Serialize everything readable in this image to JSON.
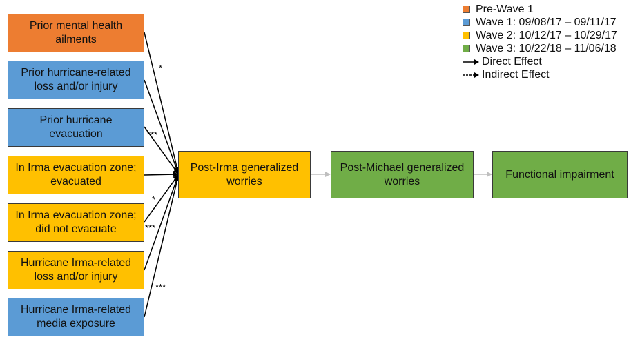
{
  "predictors": [
    {
      "label": "Prior mental health ailments",
      "wave": "pre"
    },
    {
      "label": "Prior hurricane-related loss and/or injury",
      "wave": "w1"
    },
    {
      "label": "Prior hurricane evacuation",
      "wave": "w1"
    },
    {
      "label": "In Irma evacuation zone; evacuated",
      "wave": "w2"
    },
    {
      "label": "In Irma evacuation zone; did not evacuate",
      "wave": "w2"
    },
    {
      "label": "Hurricane Irma-related loss and/or injury",
      "wave": "w2"
    },
    {
      "label": "Hurricane Irma-related media exposure",
      "wave": "w1"
    }
  ],
  "outcomes": [
    {
      "label": "Post-Irma generalized worries",
      "wave": "w2"
    },
    {
      "label": "Post-Michael generalized worries",
      "wave": "w3"
    },
    {
      "label": "Functional impairment",
      "wave": "w3"
    }
  ],
  "significance": [
    "*",
    "***",
    "*",
    "***",
    "***"
  ],
  "legend": {
    "waves": [
      {
        "label": "Pre-Wave 1",
        "color": "#ED7D31"
      },
      {
        "label": "Wave 1: 09/08/17 – 09/11/17",
        "color": "#5B9BD5"
      },
      {
        "label": "Wave 2: 10/12/17 – 10/29/17",
        "color": "#FFC000"
      },
      {
        "label": "Wave 3: 10/22/18 – 11/06/18",
        "color": "#70AD47"
      }
    ],
    "direct_effect": "Direct Effect",
    "indirect_effect": "Indirect Effect"
  },
  "colors": {
    "pre": "#ED7D31",
    "w1": "#5B9BD5",
    "w2": "#FFC000",
    "w3": "#70AD47",
    "arrow": "#000000",
    "pathway_arrow": "#BFBFBF"
  }
}
